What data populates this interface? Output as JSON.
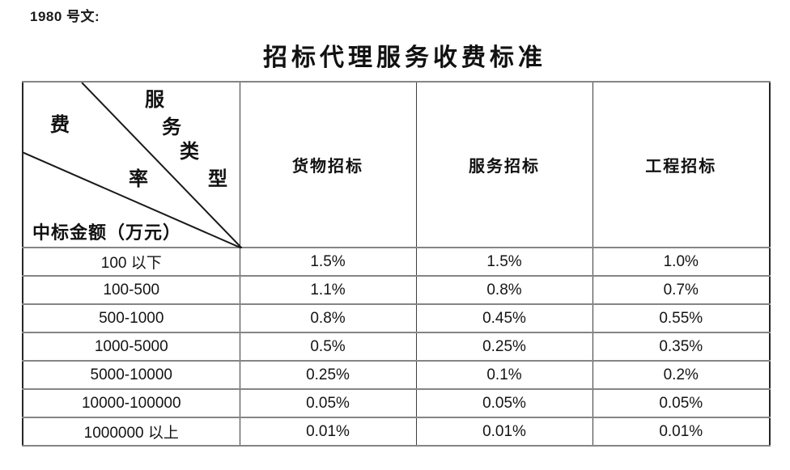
{
  "page": {
    "doc_label": "1980 号文:",
    "title": "招标代理服务收费标准"
  },
  "table": {
    "corner": {
      "service_type_chars": [
        "服",
        "务",
        "类",
        "型"
      ],
      "rate_chars": [
        "费",
        "率"
      ],
      "amount_label": "中标金额（万元）"
    },
    "columns": [
      "货物招标",
      "服务招标",
      "工程招标"
    ],
    "rows": [
      {
        "range": "100 以下",
        "values": [
          "1.5%",
          "1.5%",
          "1.0%"
        ]
      },
      {
        "range": "100-500",
        "values": [
          "1.1%",
          "0.8%",
          "0.7%"
        ]
      },
      {
        "range": "500-1000",
        "values": [
          "0.8%",
          "0.45%",
          "0.55%"
        ]
      },
      {
        "range": "1000-5000",
        "values": [
          "0.5%",
          "0.25%",
          "0.35%"
        ]
      },
      {
        "range": "5000-10000",
        "values": [
          "0.25%",
          "0.1%",
          "0.2%"
        ]
      },
      {
        "range": "10000-100000",
        "values": [
          "0.05%",
          "0.05%",
          "0.05%"
        ]
      },
      {
        "range": "1000000 以上",
        "values": [
          "0.01%",
          "0.01%",
          "0.01%"
        ]
      }
    ]
  }
}
